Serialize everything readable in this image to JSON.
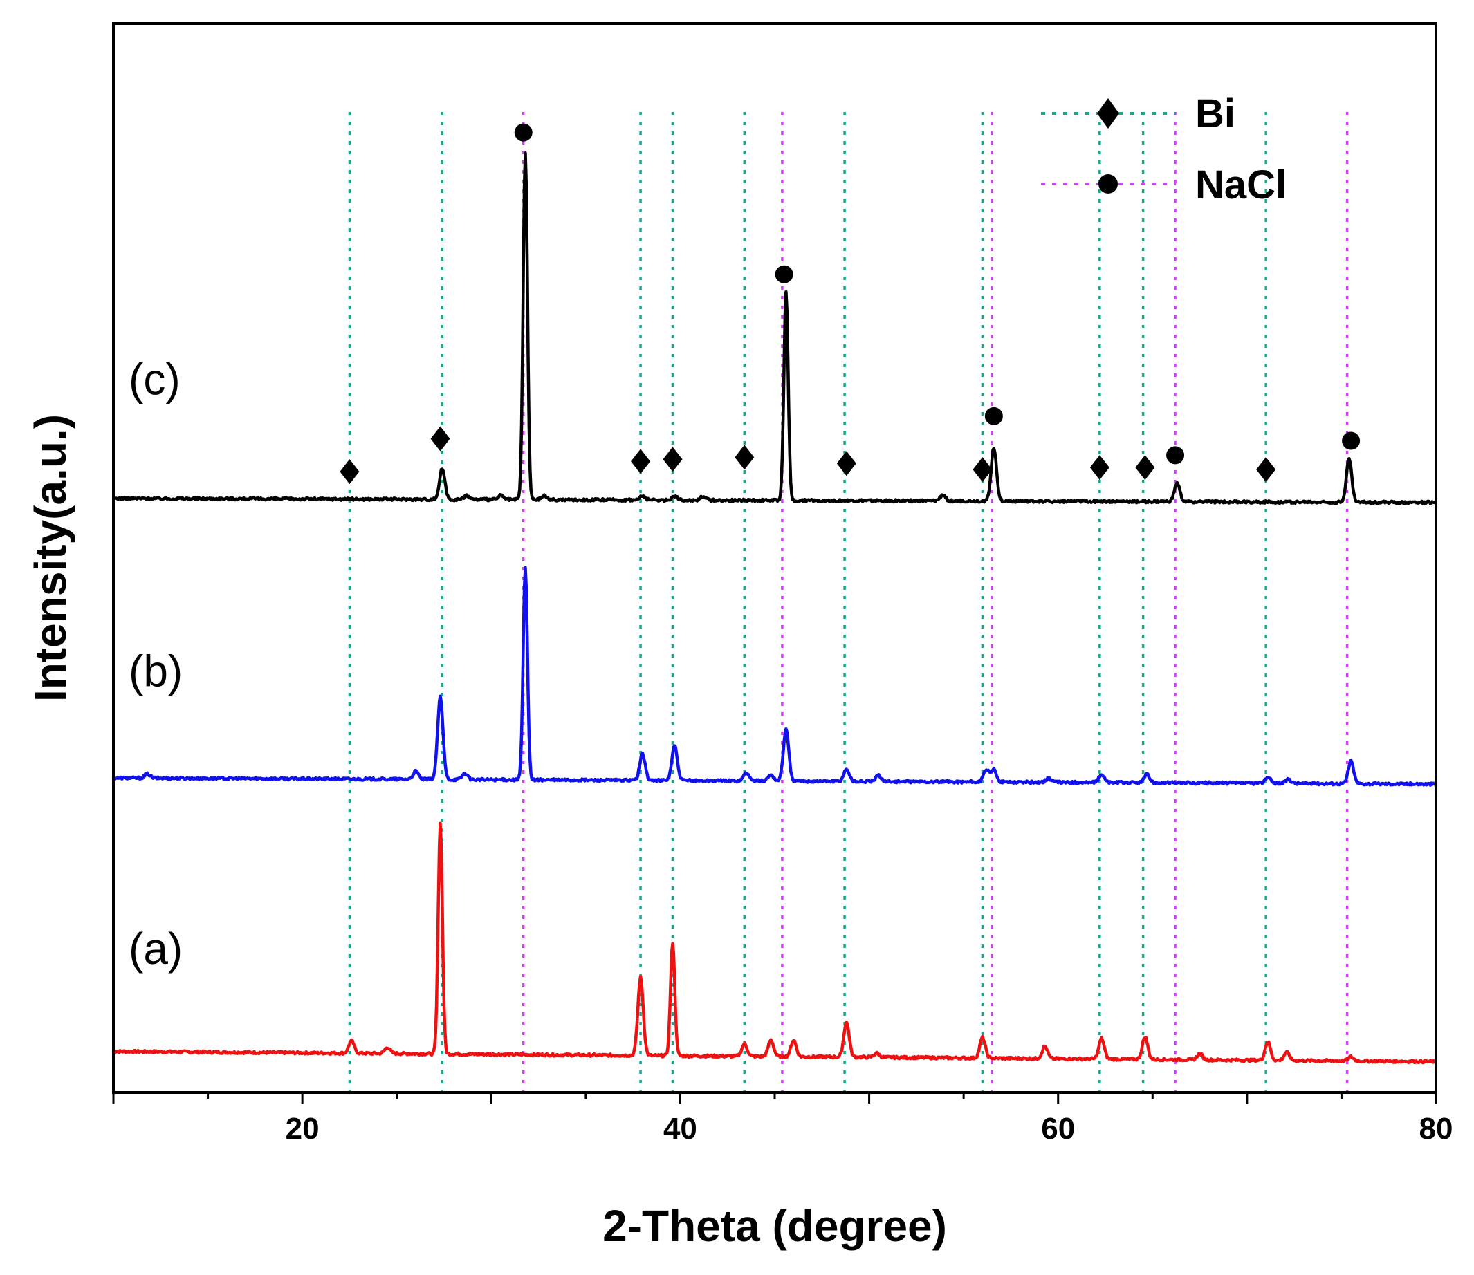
{
  "chart_data": {
    "type": "line",
    "title": "",
    "xlabel": "2-Theta (degree)",
    "ylabel": "Intensity(a.u.)",
    "xlim": [
      10,
      80
    ],
    "ylim": [
      -0.15,
      5.05
    ],
    "xticks": [
      20,
      40,
      60,
      80
    ],
    "xtick_labels": [
      "20",
      "40",
      "60",
      "80"
    ],
    "grid": false,
    "legend_position": "top-right",
    "legend": [
      {
        "name": "Bi",
        "marker": "diamond",
        "line_color": "#1aa68a"
      },
      {
        "name": "NaCl",
        "marker": "circle",
        "line_color": "#cc44ee"
      }
    ],
    "reference_lines": {
      "Bi": [
        22.5,
        27.4,
        37.9,
        39.6,
        43.4,
        48.7,
        56.0,
        62.2,
        64.5,
        71.0
      ],
      "NaCl": [
        31.7,
        45.4,
        56.5,
        66.2,
        75.3
      ]
    },
    "series": [
      {
        "name": "(a)",
        "label": "(a)",
        "color": "#ee1111",
        "offset": 0.0,
        "baseline_start": 0.05,
        "baseline_end": 0.0,
        "peaks": [
          {
            "x": 22.6,
            "h": 0.06
          },
          {
            "x": 24.5,
            "h": 0.03
          },
          {
            "x": 27.3,
            "h": 1.12
          },
          {
            "x": 37.9,
            "h": 0.38
          },
          {
            "x": 39.6,
            "h": 0.55
          },
          {
            "x": 43.4,
            "h": 0.06
          },
          {
            "x": 44.8,
            "h": 0.08
          },
          {
            "x": 46.0,
            "h": 0.08
          },
          {
            "x": 48.8,
            "h": 0.17
          },
          {
            "x": 50.4,
            "h": 0.02
          },
          {
            "x": 56.0,
            "h": 0.1
          },
          {
            "x": 59.3,
            "h": 0.06
          },
          {
            "x": 62.3,
            "h": 0.1
          },
          {
            "x": 64.6,
            "h": 0.11
          },
          {
            "x": 67.5,
            "h": 0.03
          },
          {
            "x": 71.1,
            "h": 0.09
          },
          {
            "x": 72.1,
            "h": 0.04
          },
          {
            "x": 75.5,
            "h": 0.02
          }
        ]
      },
      {
        "name": "(b)",
        "label": "(b)",
        "color": "#1111ee",
        "offset": 1.35,
        "baseline_start": 0.03,
        "baseline_end": 0.0,
        "peaks": [
          {
            "x": 11.8,
            "h": 0.02
          },
          {
            "x": 26.0,
            "h": 0.04
          },
          {
            "x": 27.3,
            "h": 0.4
          },
          {
            "x": 28.6,
            "h": 0.03
          },
          {
            "x": 31.8,
            "h": 1.03
          },
          {
            "x": 38.0,
            "h": 0.13
          },
          {
            "x": 39.7,
            "h": 0.17
          },
          {
            "x": 43.5,
            "h": 0.04
          },
          {
            "x": 44.8,
            "h": 0.03
          },
          {
            "x": 45.6,
            "h": 0.25
          },
          {
            "x": 48.8,
            "h": 0.06
          },
          {
            "x": 50.5,
            "h": 0.03
          },
          {
            "x": 56.2,
            "h": 0.06
          },
          {
            "x": 56.6,
            "h": 0.06
          },
          {
            "x": 59.5,
            "h": 0.02
          },
          {
            "x": 62.3,
            "h": 0.04
          },
          {
            "x": 64.7,
            "h": 0.04
          },
          {
            "x": 71.1,
            "h": 0.03
          },
          {
            "x": 72.2,
            "h": 0.02
          },
          {
            "x": 75.5,
            "h": 0.11
          }
        ]
      },
      {
        "name": "(c)",
        "label": "(c)",
        "color": "#000000",
        "offset": 2.72,
        "baseline_start": 0.02,
        "baseline_end": 0.0,
        "peaks": [
          {
            "x": 27.4,
            "h": 0.15
          },
          {
            "x": 28.7,
            "h": 0.02
          },
          {
            "x": 30.5,
            "h": 0.02
          },
          {
            "x": 31.8,
            "h": 1.69
          },
          {
            "x": 32.8,
            "h": 0.02
          },
          {
            "x": 38.0,
            "h": 0.02
          },
          {
            "x": 39.7,
            "h": 0.02
          },
          {
            "x": 41.2,
            "h": 0.02
          },
          {
            "x": 45.6,
            "h": 1.01
          },
          {
            "x": 53.9,
            "h": 0.03
          },
          {
            "x": 56.6,
            "h": 0.26
          },
          {
            "x": 66.3,
            "h": 0.09
          },
          {
            "x": 75.4,
            "h": 0.21
          }
        ]
      }
    ],
    "markers_c": [
      {
        "phase": "Bi",
        "x": 22.5,
        "y": 2.87
      },
      {
        "phase": "Bi",
        "x": 27.3,
        "y": 3.03
      },
      {
        "phase": "NaCl",
        "x": 31.7,
        "y": 4.52
      },
      {
        "phase": "Bi",
        "x": 37.9,
        "y": 2.92
      },
      {
        "phase": "Bi",
        "x": 39.6,
        "y": 2.93
      },
      {
        "phase": "Bi",
        "x": 43.4,
        "y": 2.94
      },
      {
        "phase": "NaCl",
        "x": 45.5,
        "y": 3.83
      },
      {
        "phase": "Bi",
        "x": 48.8,
        "y": 2.91
      },
      {
        "phase": "Bi",
        "x": 56.0,
        "y": 2.88
      },
      {
        "phase": "NaCl",
        "x": 56.6,
        "y": 3.14
      },
      {
        "phase": "Bi",
        "x": 62.2,
        "y": 2.89
      },
      {
        "phase": "Bi",
        "x": 64.6,
        "y": 2.89
      },
      {
        "phase": "NaCl",
        "x": 66.2,
        "y": 2.95
      },
      {
        "phase": "Bi",
        "x": 71.0,
        "y": 2.88
      },
      {
        "phase": "NaCl",
        "x": 75.5,
        "y": 3.02
      }
    ]
  }
}
